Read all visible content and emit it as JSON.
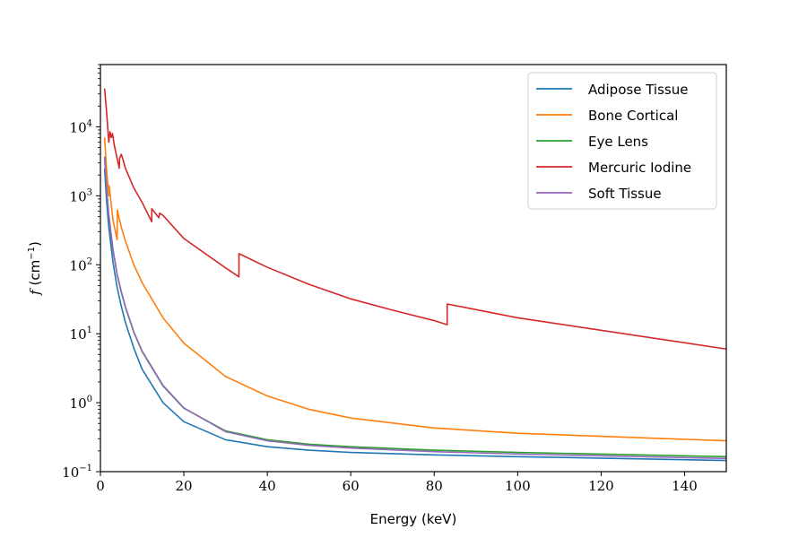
{
  "chart_data": {
    "type": "line",
    "title": "",
    "xlabel": "Energy (keV)",
    "ylabel": {
      "var": "f",
      "unit_base": "cm",
      "unit_exp": "−1"
    },
    "xlim": [
      0,
      150
    ],
    "ylim": [
      0.1,
      80000
    ],
    "yscale": "log",
    "grid": false,
    "legend_position": "top-right",
    "x_ticks": [
      {
        "value": 0,
        "label": "0"
      },
      {
        "value": 20,
        "label": "20"
      },
      {
        "value": 40,
        "label": "40"
      },
      {
        "value": 60,
        "label": "60"
      },
      {
        "value": 80,
        "label": "80"
      },
      {
        "value": 100,
        "label": "100"
      },
      {
        "value": 120,
        "label": "120"
      },
      {
        "value": 140,
        "label": "140"
      }
    ],
    "y_ticks": [
      {
        "value": 0.1,
        "base": "10",
        "exp": "−1"
      },
      {
        "value": 1,
        "base": "10",
        "exp": "0"
      },
      {
        "value": 10,
        "base": "10",
        "exp": "1"
      },
      {
        "value": 100,
        "base": "10",
        "exp": "2"
      },
      {
        "value": 1000,
        "base": "10",
        "exp": "3"
      },
      {
        "value": 10000,
        "base": "10",
        "exp": "4"
      }
    ],
    "series": [
      {
        "name": "Adipose Tissue",
        "color": "#1f77b4",
        "points": [
          [
            1,
            2500
          ],
          [
            1.5,
            800
          ],
          [
            2,
            350
          ],
          [
            3,
            110
          ],
          [
            4,
            47
          ],
          [
            5,
            25
          ],
          [
            6,
            14.5
          ],
          [
            8,
            6.2
          ],
          [
            10,
            3.05
          ],
          [
            15,
            1.0
          ],
          [
            20,
            0.53
          ],
          [
            30,
            0.29
          ],
          [
            40,
            0.23
          ],
          [
            50,
            0.205
          ],
          [
            60,
            0.19
          ],
          [
            80,
            0.175
          ],
          [
            100,
            0.165
          ],
          [
            150,
            0.145
          ]
        ]
      },
      {
        "name": "Bone Cortical",
        "color": "#ff7f0e",
        "points": [
          [
            1,
            7000
          ],
          [
            1.5,
            2300
          ],
          [
            2,
            1000
          ],
          [
            2.1,
            1400
          ],
          [
            3,
            450
          ],
          [
            4,
            230
          ],
          [
            4.04,
            620
          ],
          [
            5,
            350
          ],
          [
            6,
            220
          ],
          [
            8,
            100
          ],
          [
            10,
            55
          ],
          [
            15,
            17
          ],
          [
            20,
            7.3
          ],
          [
            30,
            2.4
          ],
          [
            40,
            1.25
          ],
          [
            50,
            0.8
          ],
          [
            60,
            0.6
          ],
          [
            80,
            0.43
          ],
          [
            100,
            0.36
          ],
          [
            150,
            0.28
          ]
        ]
      },
      {
        "name": "Eye Lens",
        "color": "#2ca02c",
        "points": [
          [
            1,
            3600
          ],
          [
            1.5,
            1200
          ],
          [
            2,
            520
          ],
          [
            3,
            165
          ],
          [
            4,
            72
          ],
          [
            5,
            40
          ],
          [
            6,
            24
          ],
          [
            8,
            10.5
          ],
          [
            10,
            5.5
          ],
          [
            15,
            1.75
          ],
          [
            20,
            0.83
          ],
          [
            30,
            0.39
          ],
          [
            40,
            0.29
          ],
          [
            50,
            0.25
          ],
          [
            60,
            0.23
          ],
          [
            80,
            0.205
          ],
          [
            100,
            0.19
          ],
          [
            150,
            0.165
          ]
        ]
      },
      {
        "name": "Mercuric Iodine",
        "color": "#d62728",
        "points": [
          [
            1,
            36000
          ],
          [
            1.5,
            16000
          ],
          [
            2,
            6000
          ],
          [
            2.3,
            8500
          ],
          [
            2.6,
            7000
          ],
          [
            2.9,
            8000
          ],
          [
            3.3,
            5500
          ],
          [
            4.5,
            2500
          ],
          [
            4.6,
            3500
          ],
          [
            5,
            4000
          ],
          [
            5.5,
            3200
          ],
          [
            6,
            2500
          ],
          [
            8,
            1300
          ],
          [
            10,
            800
          ],
          [
            12.3,
            420
          ],
          [
            12.3,
            650
          ],
          [
            14,
            480
          ],
          [
            14.2,
            560
          ],
          [
            15,
            520
          ],
          [
            20,
            240
          ],
          [
            30,
            90
          ],
          [
            33.2,
            67
          ],
          [
            33.2,
            145
          ],
          [
            40,
            92
          ],
          [
            50,
            52
          ],
          [
            60,
            32
          ],
          [
            70,
            22
          ],
          [
            80,
            15.5
          ],
          [
            83.1,
            13.5
          ],
          [
            83.1,
            27
          ],
          [
            100,
            17
          ],
          [
            150,
            6
          ]
        ]
      },
      {
        "name": "Soft Tissue",
        "color": "#9467bd",
        "points": [
          [
            1,
            3700
          ],
          [
            1.5,
            1220
          ],
          [
            2,
            530
          ],
          [
            3,
            168
          ],
          [
            4,
            73
          ],
          [
            5,
            41
          ],
          [
            6,
            24.5
          ],
          [
            8,
            10.7
          ],
          [
            10,
            5.6
          ],
          [
            15,
            1.78
          ],
          [
            20,
            0.84
          ],
          [
            30,
            0.38
          ],
          [
            40,
            0.28
          ],
          [
            50,
            0.24
          ],
          [
            60,
            0.22
          ],
          [
            80,
            0.195
          ],
          [
            100,
            0.18
          ],
          [
            150,
            0.155
          ]
        ]
      }
    ]
  }
}
